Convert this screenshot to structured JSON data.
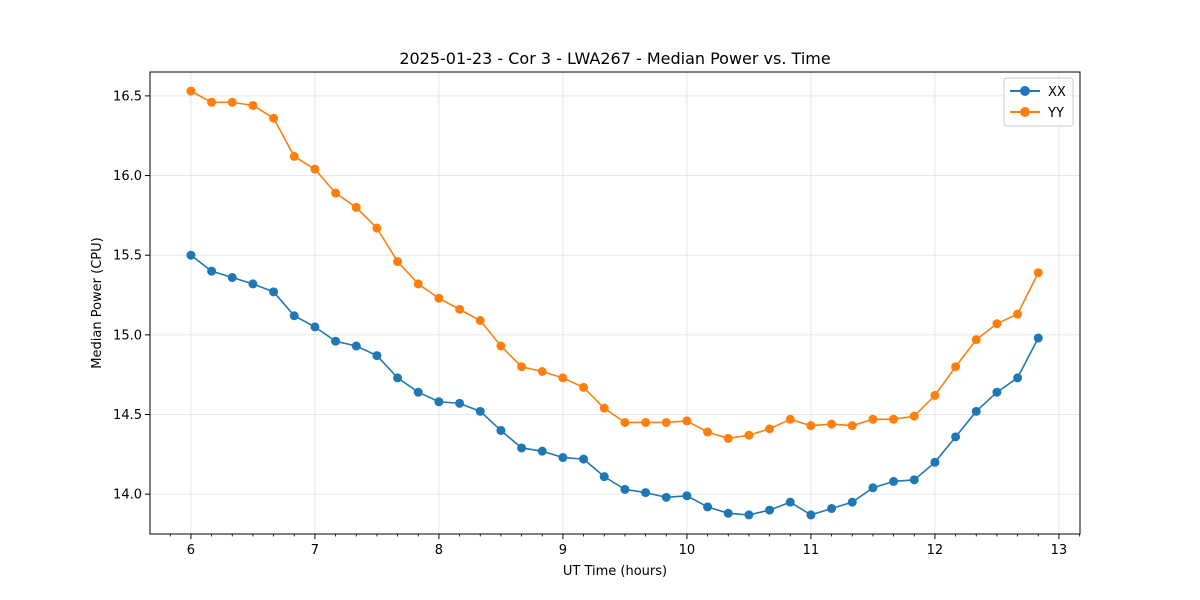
{
  "chart_data": {
    "type": "line",
    "title": "2025-01-23 - Cor 3 - LWA267 - Median Power vs. Time",
    "xlabel": "UT Time (hours)",
    "ylabel": "Median Power (CPU)",
    "xlim": [
      5.67,
      13.17
    ],
    "ylim": [
      13.75,
      16.65
    ],
    "xticks": [
      6,
      7,
      8,
      9,
      10,
      11,
      12,
      13
    ],
    "yticks": [
      14.0,
      14.5,
      15.0,
      15.5,
      16.0,
      16.5
    ],
    "xtick_labels": [
      "6",
      "7",
      "8",
      "9",
      "10",
      "11",
      "12",
      "13"
    ],
    "ytick_labels": [
      "14.0",
      "14.5",
      "15.0",
      "15.5",
      "16.0",
      "16.5"
    ],
    "grid": true,
    "legend_position": "top-right",
    "x": [
      6.0,
      6.1667,
      6.3333,
      6.5,
      6.6667,
      6.8333,
      7.0,
      7.1667,
      7.3333,
      7.5,
      7.6667,
      7.8333,
      8.0,
      8.1667,
      8.3333,
      8.5,
      8.6667,
      8.8333,
      9.0,
      9.1667,
      9.3333,
      9.5,
      9.6667,
      9.8333,
      10.0,
      10.1667,
      10.3333,
      10.5,
      10.6667,
      10.8333,
      11.0,
      11.1667,
      11.3333,
      11.5,
      11.6667,
      11.8333,
      12.0,
      12.1667,
      12.3333,
      12.5,
      12.6667,
      12.8333
    ],
    "series": [
      {
        "name": "XX",
        "color": "#1f77b4",
        "values": [
          15.5,
          15.4,
          15.36,
          15.32,
          15.27,
          15.12,
          15.05,
          14.96,
          14.93,
          14.87,
          14.73,
          14.64,
          14.58,
          14.57,
          14.52,
          14.4,
          14.29,
          14.27,
          14.23,
          14.22,
          14.11,
          14.03,
          14.01,
          13.98,
          13.99,
          13.92,
          13.88,
          13.87,
          13.9,
          13.95,
          13.87,
          13.91,
          13.95,
          14.04,
          14.08,
          14.09,
          14.2,
          14.36,
          14.52,
          14.64,
          14.73,
          14.98
        ]
      },
      {
        "name": "YY",
        "color": "#ff7f0e",
        "values": [
          16.53,
          16.46,
          16.46,
          16.44,
          16.36,
          16.12,
          16.04,
          15.89,
          15.8,
          15.67,
          15.46,
          15.32,
          15.23,
          15.16,
          15.09,
          14.93,
          14.8,
          14.77,
          14.73,
          14.67,
          14.54,
          14.45,
          14.45,
          14.45,
          14.46,
          14.39,
          14.35,
          14.37,
          14.41,
          14.47,
          14.43,
          14.44,
          14.43,
          14.47,
          14.47,
          14.49,
          14.62,
          14.8,
          14.97,
          15.07,
          15.13,
          15.39
        ]
      }
    ]
  }
}
